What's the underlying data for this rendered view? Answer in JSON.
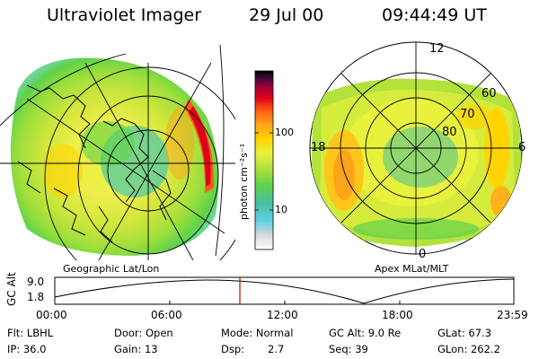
{
  "header": {
    "instrument": "Ultraviolet Imager",
    "date": "29 Jul 00",
    "time": "09:44:49 UT"
  },
  "left_panel": {
    "caption": "Geographic Lat/Lon"
  },
  "right_panel": {
    "caption": "Apex MLat/MLT",
    "mlt_labels": [
      "12",
      "18",
      "6",
      "0"
    ],
    "mlat_labels": [
      "60",
      "70",
      "80"
    ]
  },
  "colorbar": {
    "unit": "photon cm⁻²s⁻¹",
    "ticks": [
      "100",
      "10"
    ],
    "colors": [
      "#ffffff",
      "#d9d9d9",
      "#5fd0e6",
      "#46c0a0",
      "#5fd24a",
      "#b4e23c",
      "#e8f23c",
      "#ffd400",
      "#ffa31a",
      "#ff5a14",
      "#e0001c",
      "#a0003c",
      "#3c0a3c",
      "#000000"
    ]
  },
  "timeline": {
    "ylabel": "GC Alt",
    "ytick_top": "9.0",
    "ytick_bottom": "1.8",
    "xticks": [
      "00:00",
      "06:00",
      "12:00",
      "18:00",
      "23:59"
    ],
    "marker_color": "#d00000"
  },
  "status": {
    "filter": "Flt: LBHL",
    "ip": "IP: 36.0",
    "door": "Door: Open",
    "gain": "Gain: 13",
    "mode": "Mode: Normal",
    "dsp_label": "Dsp:",
    "dsp_value": "2.7",
    "gc_alt": "GC Alt: 9.0 Re",
    "seq": "Seq: 39",
    "glat": "GLat: 67.3",
    "glon": "GLon: 262.2"
  }
}
